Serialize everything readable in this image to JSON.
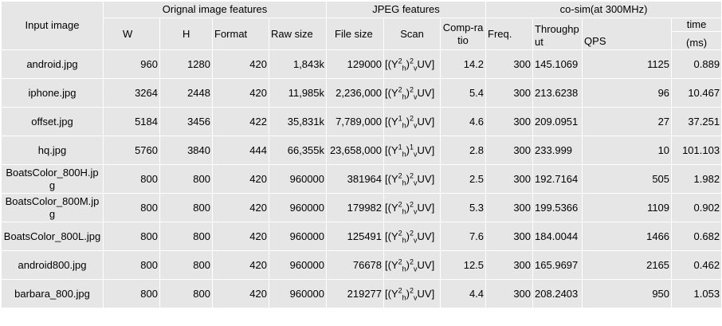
{
  "headers": {
    "input_image": "Input image",
    "group_original": "Orignal image features",
    "group_jpeg": "JPEG features",
    "group_cosim": "co-sim(at 300MHz)",
    "time_top": "time",
    "w": "W",
    "h": "H",
    "format": "Format",
    "raw_size": "Raw size",
    "file_size": "File size",
    "scan": "Scan",
    "comp_ratio": "Comp-ratio",
    "freq": "Freq.",
    "throughput": "Throughput",
    "qps": "QPS",
    "ms": "(ms)"
  },
  "rows": [
    {
      "image": "android.jpg",
      "w": "960",
      "h": "1280",
      "format": "420",
      "raw": "1,843k",
      "file": "129000",
      "scan": {
        "a": "2",
        "b": "h",
        "c": "2",
        "d": "v"
      },
      "ratio": "14.2",
      "freq": "300",
      "thr": "145.1069",
      "qps": "1125",
      "time": "0.889"
    },
    {
      "image": "iphone.jpg",
      "w": "3264",
      "h": "2448",
      "format": "420",
      "raw": "11,985k",
      "file": "2,236,000",
      "scan": {
        "a": "2",
        "b": "h",
        "c": "2",
        "d": "v"
      },
      "ratio": "5.4",
      "freq": "300",
      "thr": "213.6238",
      "qps": "96",
      "time": "10.467"
    },
    {
      "image": "offset.jpg",
      "w": "5184",
      "h": "3456",
      "format": "422",
      "raw": "35,831k",
      "file": "7,789,000",
      "scan": {
        "a": "1",
        "b": "h",
        "c": "2",
        "d": "v"
      },
      "ratio": "4.6",
      "freq": "300",
      "thr": "209.0951",
      "qps": "27",
      "time": "37.251"
    },
    {
      "image": "hq.jpg",
      "w": "5760",
      "h": "3840",
      "format": "444",
      "raw": "66,355k",
      "file": "23,658,000",
      "scan": {
        "a": "1",
        "b": "h",
        "c": "1",
        "d": "v"
      },
      "ratio": "2.8",
      "freq": "300",
      "thr": "233.999",
      "qps": "10",
      "time": "101.103"
    },
    {
      "image": "BoatsColor_800H.jpg",
      "w": "800",
      "h": "800",
      "format": "420",
      "raw": "960000",
      "file": "381964",
      "scan": {
        "a": "2",
        "b": "h",
        "c": "2",
        "d": "v"
      },
      "ratio": "2.5",
      "freq": "300",
      "thr": "192.7164",
      "qps": "505",
      "time": "1.982"
    },
    {
      "image": "BoatsColor_800M.jpg",
      "w": "800",
      "h": "800",
      "format": "420",
      "raw": "960000",
      "file": "179982",
      "scan": {
        "a": "2",
        "b": "h",
        "c": "2",
        "d": "v"
      },
      "ratio": "5.3",
      "freq": "300",
      "thr": "199.5366",
      "qps": "1109",
      "time": "0.902"
    },
    {
      "image": "BoatsColor_800L.jpg",
      "w": "800",
      "h": "800",
      "format": "420",
      "raw": "960000",
      "file": "125491",
      "scan": {
        "a": "2",
        "b": "h",
        "c": "2",
        "d": "v"
      },
      "ratio": "7.6",
      "freq": "300",
      "thr": "184.0044",
      "qps": "1466",
      "time": "0.682"
    },
    {
      "image": "android800.jpg",
      "w": "800",
      "h": "800",
      "format": "420",
      "raw": "960000",
      "file": "76678",
      "scan": {
        "a": "2",
        "b": "h",
        "c": "2",
        "d": "v"
      },
      "ratio": "12.5",
      "freq": "300",
      "thr": "165.9697",
      "qps": "2165",
      "time": "0.462"
    },
    {
      "image": "barbara_800.jpg",
      "w": "800",
      "h": "800",
      "format": "420",
      "raw": "960000",
      "file": "219277",
      "scan": {
        "a": "2",
        "b": "h",
        "c": "2",
        "d": "v"
      },
      "ratio": "4.4",
      "freq": "300",
      "thr": "208.2403",
      "qps": "950",
      "time": "1.053"
    }
  ]
}
